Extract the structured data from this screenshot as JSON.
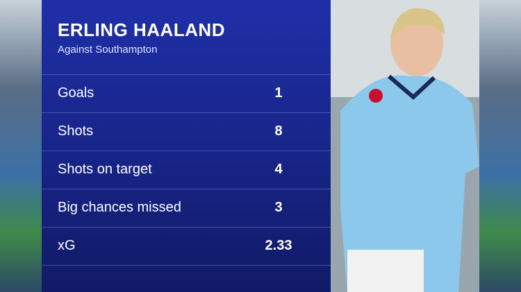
{
  "header": {
    "title": "ERLING HAALAND",
    "subtitle": "Against Southampton"
  },
  "table": {
    "rows": [
      [
        "Goals",
        1
      ],
      [
        "Shots",
        8
      ],
      [
        "Shots on target",
        4
      ],
      [
        "Big chances missed",
        3
      ],
      [
        "xG",
        2.33
      ]
    ]
  }
}
